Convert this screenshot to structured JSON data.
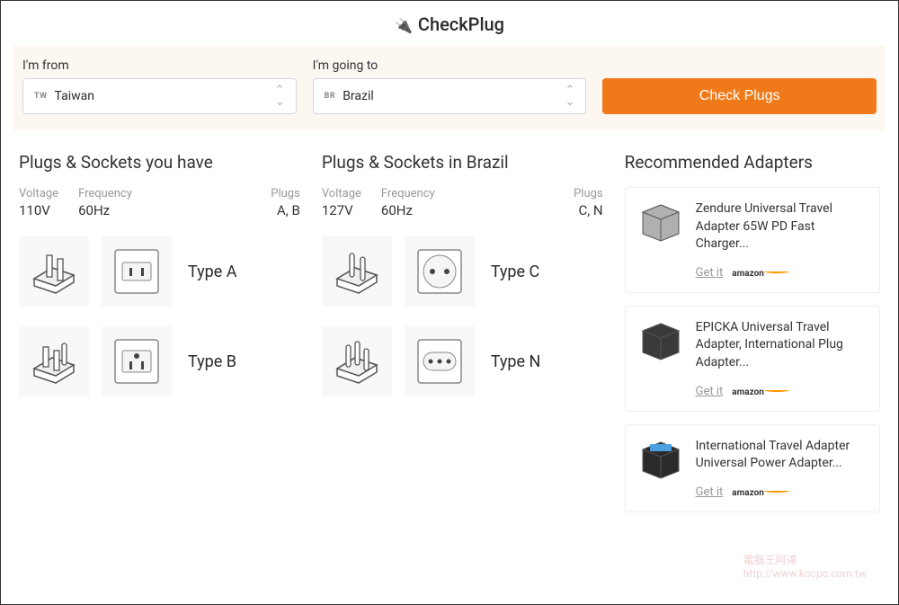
{
  "app": {
    "title": "CheckPlug"
  },
  "search": {
    "from_label": "I'm from",
    "from_cc": "TW",
    "from_value": "Taiwan",
    "to_label": "I'm going to",
    "to_cc": "BR",
    "to_value": "Brazil",
    "button": "Check Plugs",
    "accent_color": "#f07a1a"
  },
  "have": {
    "title": "Plugs & Sockets you have",
    "voltage_label": "Voltage",
    "voltage": "110V",
    "frequency_label": "Frequency",
    "frequency": "60Hz",
    "plugs_label": "Plugs",
    "plugs": "A, B",
    "types": [
      {
        "label": "Type A",
        "plug_svg": "plugA",
        "socket_svg": "socketA"
      },
      {
        "label": "Type B",
        "plug_svg": "plugB",
        "socket_svg": "socketB"
      }
    ]
  },
  "dest": {
    "title": "Plugs & Sockets in Brazil",
    "voltage_label": "Voltage",
    "voltage": "127V",
    "frequency_label": "Frequency",
    "frequency": "60Hz",
    "plugs_label": "Plugs",
    "plugs": "C, N",
    "types": [
      {
        "label": "Type C",
        "plug_svg": "plugC",
        "socket_svg": "socketC"
      },
      {
        "label": "Type N",
        "plug_svg": "plugN",
        "socket_svg": "socketN"
      }
    ]
  },
  "adapters": {
    "title": "Recommended Adapters",
    "get_it": "Get it",
    "amazon": "amazon",
    "items": [
      {
        "name": "Zendure Universal Travel Adapter 65W PD Fast Charger...",
        "color": "#b0b0b0"
      },
      {
        "name": "EPICKA Universal Travel Adapter, International Plug Adapter...",
        "color": "#3a3a3a"
      },
      {
        "name": "International Travel Adapter Universal Power Adapter...",
        "color": "#2a2a2a",
        "accent": "#4aa0e0"
      }
    ]
  }
}
